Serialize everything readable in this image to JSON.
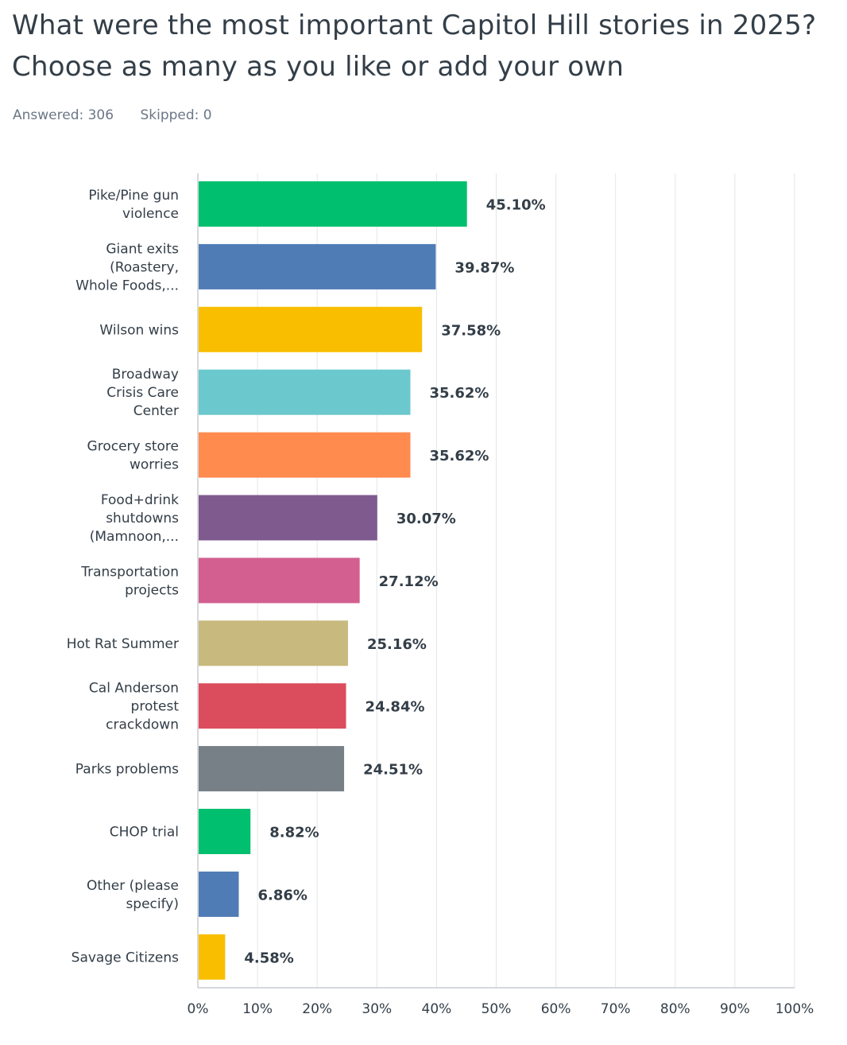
{
  "chart_data": {
    "type": "bar",
    "orientation": "horizontal",
    "title_lines": [
      "What were the most important Capitol Hill stories in 2025?",
      "Choose as many as you like or add your own"
    ],
    "answered_label": "Answered: 306",
    "skipped_label": "Skipped: 0",
    "categories": [
      [
        "Pike/Pine gun",
        "violence"
      ],
      [
        "Giant exits",
        "(Roastery,",
        "Whole Foods,..."
      ],
      [
        "Wilson wins"
      ],
      [
        "Broadway",
        "Crisis Care",
        "Center"
      ],
      [
        "Grocery store",
        "worries"
      ],
      [
        "Food+drink",
        "shutdowns",
        "(Mamnoon,..."
      ],
      [
        "Transportation",
        "projects"
      ],
      [
        "Hot Rat Summer"
      ],
      [
        "Cal Anderson",
        "protest",
        "crackdown"
      ],
      [
        "Parks problems"
      ],
      [
        "CHOP trial"
      ],
      [
        "Other (please",
        "specify)"
      ],
      [
        "Savage Citizens"
      ]
    ],
    "values": [
      45.1,
      39.87,
      37.58,
      35.62,
      35.62,
      30.07,
      27.12,
      25.16,
      24.84,
      24.51,
      8.82,
      6.86,
      4.58
    ],
    "value_labels": [
      "45.10%",
      "39.87%",
      "37.58%",
      "35.62%",
      "35.62%",
      "30.07%",
      "27.12%",
      "25.16%",
      "24.84%",
      "24.51%",
      "8.82%",
      "6.86%",
      "4.58%"
    ],
    "colors": [
      "#00bf6f",
      "#507cb6",
      "#f9be00",
      "#6bc8cd",
      "#ff8b4f",
      "#7f5a8e",
      "#d25f90",
      "#c8b97e",
      "#db4d5c",
      "#768086",
      "#00bf6f",
      "#507cb6",
      "#f9be00"
    ],
    "xlim": [
      0,
      100
    ],
    "xticks": [
      0,
      10,
      20,
      30,
      40,
      50,
      60,
      70,
      80,
      90,
      100
    ],
    "xtick_labels": [
      "0%",
      "10%",
      "20%",
      "30%",
      "40%",
      "50%",
      "60%",
      "70%",
      "80%",
      "90%",
      "100%"
    ],
    "grid": true,
    "legend": "none"
  }
}
